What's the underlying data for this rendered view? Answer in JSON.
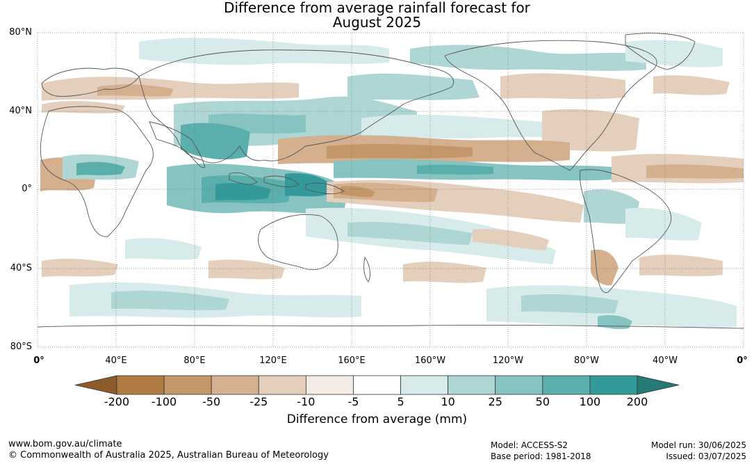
{
  "title_line1": "Difference from average rainfall forecast for",
  "title_line2": "August 2025",
  "lat_labels": [
    "80°N",
    "40°N",
    "0°",
    "40°S",
    "80°S"
  ],
  "lon_labels": [
    "0°",
    "40°E",
    "80°E",
    "120°E",
    "160°E",
    "160°W",
    "120°W",
    "80°W",
    "40°W",
    "0°"
  ],
  "legend": {
    "ticks": [
      "-200",
      "-100",
      "-50",
      "-25",
      "-10",
      "-5",
      "5",
      "10",
      "25",
      "50",
      "100",
      "200"
    ],
    "colors": [
      "#8c5a2b",
      "#b07a43",
      "#c4976a",
      "#d4b08f",
      "#e4cfbd",
      "#f2ebe6",
      "#ffffff",
      "#d7ebea",
      "#aed6d4",
      "#86c3c1",
      "#5aaeab",
      "#33999a",
      "#257a78"
    ],
    "caption": "Difference from average (mm)"
  },
  "footer": {
    "url": "www.bom.gov.au/climate",
    "copyright": "© Commonwealth of Australia 2025, Australian Bureau of Meteorology",
    "model": "Model: ACCESS-S2",
    "base_period": "Base period: 1981-2018",
    "model_run": "Model run: 30/06/2025",
    "issued": "Issued: 03/07/2025"
  }
}
